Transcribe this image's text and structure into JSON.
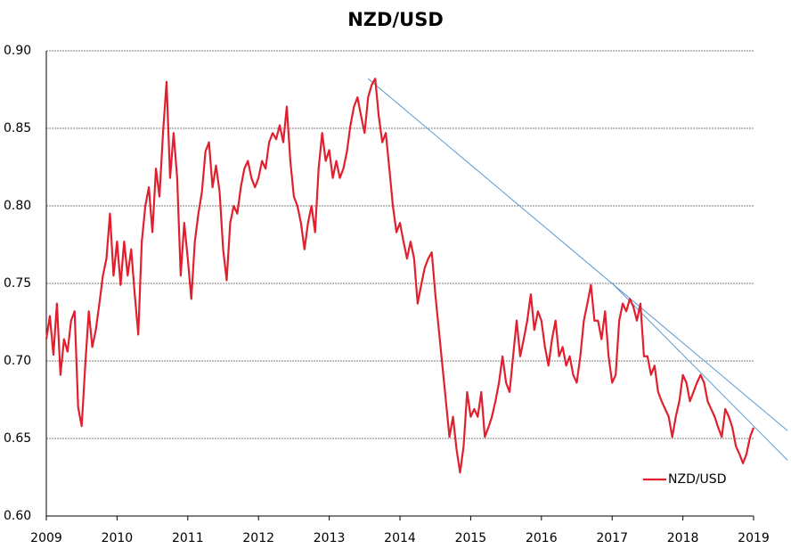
{
  "chart_data": {
    "type": "line",
    "title": "NZD/USD",
    "x": [
      2009,
      2009.05,
      2009.1,
      2009.15,
      2009.2,
      2009.25,
      2009.3,
      2009.35,
      2009.4,
      2009.45,
      2009.5,
      2009.55,
      2009.6,
      2009.65,
      2009.7,
      2009.75,
      2009.8,
      2009.85,
      2009.9,
      2009.95,
      2010,
      2010.05,
      2010.1,
      2010.15,
      2010.2,
      2010.25,
      2010.3,
      2010.35,
      2010.4,
      2010.45,
      2010.5,
      2010.55,
      2010.6,
      2010.65,
      2010.7,
      2010.75,
      2010.8,
      2010.85,
      2010.9,
      2010.95,
      2011,
      2011.05,
      2011.1,
      2011.15,
      2011.2,
      2011.25,
      2011.3,
      2011.35,
      2011.4,
      2011.45,
      2011.5,
      2011.55,
      2011.6,
      2011.65,
      2011.7,
      2011.75,
      2011.8,
      2011.85,
      2011.9,
      2011.95,
      2012,
      2012.05,
      2012.1,
      2012.15,
      2012.2,
      2012.25,
      2012.3,
      2012.35,
      2012.4,
      2012.45,
      2012.5,
      2012.55,
      2012.6,
      2012.65,
      2012.7,
      2012.75,
      2012.8,
      2012.85,
      2012.9,
      2012.95,
      2013,
      2013.05,
      2013.1,
      2013.15,
      2013.2,
      2013.25,
      2013.3,
      2013.35,
      2013.4,
      2013.45,
      2013.5,
      2013.55,
      2013.6,
      2013.65,
      2013.7,
      2013.75,
      2013.8,
      2013.85,
      2013.9,
      2013.95,
      2014,
      2014.05,
      2014.1,
      2014.15,
      2014.2,
      2014.25,
      2014.3,
      2014.35,
      2014.4,
      2014.45,
      2014.5,
      2014.55,
      2014.6,
      2014.65,
      2014.7,
      2014.75,
      2014.8,
      2014.85,
      2014.9,
      2014.95,
      2015,
      2015.05,
      2015.1,
      2015.15,
      2015.2,
      2015.25,
      2015.3,
      2015.35,
      2015.4,
      2015.45,
      2015.5,
      2015.55,
      2015.6,
      2015.65,
      2015.7,
      2015.75,
      2015.8,
      2015.85,
      2015.9,
      2015.95,
      2016,
      2016.05,
      2016.1,
      2016.15,
      2016.2,
      2016.25,
      2016.3,
      2016.35,
      2016.4,
      2016.45,
      2016.5,
      2016.55,
      2016.6,
      2016.65,
      2016.7,
      2016.75,
      2016.8,
      2016.85,
      2016.9,
      2016.95,
      2017,
      2017.05,
      2017.1,
      2017.15,
      2017.2,
      2017.25,
      2017.3,
      2017.35,
      2017.4,
      2017.45,
      2017.5,
      2017.55,
      2017.6,
      2017.65,
      2017.7,
      2017.75,
      2017.8,
      2017.85,
      2017.9,
      2017.95,
      2018,
      2018.05,
      2018.1,
      2018.15,
      2018.2,
      2018.25,
      2018.3,
      2018.35,
      2018.4,
      2018.45,
      2018.5,
      2018.55,
      2018.6,
      2018.65,
      2018.7,
      2018.75,
      2018.8,
      2018.85,
      2018.9,
      2018.95,
      2019
    ],
    "series": [
      {
        "name": "NZD/USD",
        "color": "#e0202e",
        "values": [
          0.714,
          0.729,
          0.704,
          0.737,
          0.691,
          0.714,
          0.706,
          0.726,
          0.732,
          0.67,
          0.658,
          0.697,
          0.732,
          0.709,
          0.72,
          0.737,
          0.755,
          0.766,
          0.795,
          0.755,
          0.777,
          0.749,
          0.777,
          0.755,
          0.772,
          0.743,
          0.717,
          0.777,
          0.8,
          0.812,
          0.783,
          0.824,
          0.806,
          0.847,
          0.88,
          0.818,
          0.847,
          0.818,
          0.755,
          0.789,
          0.766,
          0.74,
          0.777,
          0.795,
          0.809,
          0.835,
          0.841,
          0.812,
          0.826,
          0.809,
          0.772,
          0.752,
          0.789,
          0.8,
          0.795,
          0.812,
          0.824,
          0.829,
          0.818,
          0.812,
          0.818,
          0.829,
          0.824,
          0.841,
          0.847,
          0.843,
          0.852,
          0.841,
          0.864,
          0.829,
          0.806,
          0.8,
          0.789,
          0.772,
          0.789,
          0.8,
          0.783,
          0.824,
          0.847,
          0.829,
          0.836,
          0.818,
          0.829,
          0.818,
          0.824,
          0.835,
          0.852,
          0.864,
          0.87,
          0.858,
          0.847,
          0.87,
          0.878,
          0.882,
          0.858,
          0.841,
          0.847,
          0.824,
          0.8,
          0.783,
          0.789,
          0.777,
          0.766,
          0.777,
          0.766,
          0.737,
          0.749,
          0.76,
          0.766,
          0.77,
          0.743,
          0.72,
          0.697,
          0.674,
          0.651,
          0.664,
          0.643,
          0.628,
          0.645,
          0.68,
          0.664,
          0.669,
          0.664,
          0.68,
          0.651,
          0.657,
          0.664,
          0.674,
          0.686,
          0.703,
          0.686,
          0.68,
          0.703,
          0.726,
          0.703,
          0.714,
          0.726,
          0.743,
          0.72,
          0.732,
          0.726,
          0.709,
          0.697,
          0.714,
          0.726,
          0.703,
          0.709,
          0.697,
          0.703,
          0.691,
          0.686,
          0.703,
          0.726,
          0.737,
          0.749,
          0.726,
          0.726,
          0.714,
          0.732,
          0.703,
          0.686,
          0.691,
          0.726,
          0.737,
          0.732,
          0.74,
          0.735,
          0.726,
          0.737,
          0.703,
          0.703,
          0.691,
          0.697,
          0.68,
          0.674,
          0.669,
          0.664,
          0.651,
          0.664,
          0.674,
          0.691,
          0.686,
          0.674,
          0.68,
          0.686,
          0.691,
          0.686,
          0.674,
          0.669,
          0.664,
          0.657,
          0.651,
          0.669,
          0.664,
          0.657,
          0.645,
          0.64,
          0.634,
          0.64,
          0.651,
          0.657
        ]
      }
    ],
    "trendlines": [
      {
        "color": "#5b9bd5",
        "x": [
          2013.55,
          2019.48
        ],
        "values": [
          0.882,
          0.655
        ]
      },
      {
        "color": "#5b9bd5",
        "x": [
          2017.0,
          2019.48
        ],
        "values": [
          0.75,
          0.636
        ]
      }
    ],
    "xlim": [
      2009,
      2019
    ],
    "xticks": [
      2009,
      2010,
      2011,
      2012,
      2013,
      2014,
      2015,
      2016,
      2017,
      2018,
      2019
    ],
    "ylim": [
      0.6,
      0.9
    ],
    "yticks": [
      {
        "value": 0.6,
        "label": "0.60"
      },
      {
        "value": 0.65,
        "label": "0.65"
      },
      {
        "value": 0.7,
        "label": "0.70"
      },
      {
        "value": 0.75,
        "label": "0.75"
      },
      {
        "value": 0.8,
        "label": "0.80"
      },
      {
        "value": 0.85,
        "label": "0.85"
      },
      {
        "value": 0.9,
        "label": "0.90"
      }
    ],
    "grid": true,
    "legend": "bottom-right"
  }
}
